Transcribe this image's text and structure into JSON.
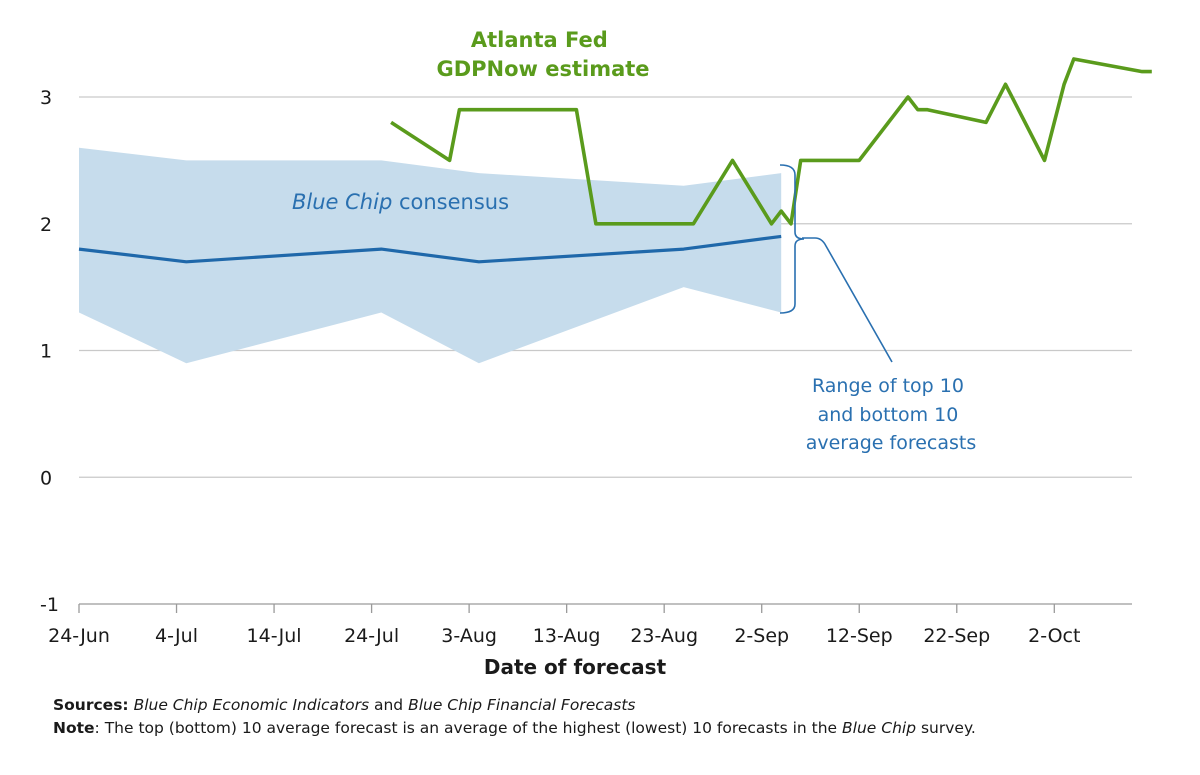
{
  "chart_data": {
    "type": "line",
    "title": "",
    "xlabel": "Date of forecast",
    "ylabel": "",
    "ylim": [
      -1,
      3.5
    ],
    "y_ticks": [
      "-1",
      "0",
      "1",
      "2",
      "3"
    ],
    "x_domain": [
      "2016-06-24",
      "2016-10-13"
    ],
    "x_ticks": [
      {
        "date": "2016-06-24",
        "label": "24-Jun"
      },
      {
        "date": "2016-07-04",
        "label": "4-Jul"
      },
      {
        "date": "2016-07-14",
        "label": "14-Jul"
      },
      {
        "date": "2016-07-24",
        "label": "24-Jul"
      },
      {
        "date": "2016-08-03",
        "label": "3-Aug"
      },
      {
        "date": "2016-08-13",
        "label": "13-Aug"
      },
      {
        "date": "2016-08-23",
        "label": "23-Aug"
      },
      {
        "date": "2016-09-02",
        "label": "2-Sep"
      },
      {
        "date": "2016-09-12",
        "label": "12-Sep"
      },
      {
        "date": "2016-09-22",
        "label": "22-Sep"
      },
      {
        "date": "2016-10-02",
        "label": "2-Oct"
      }
    ],
    "grid": true,
    "series": [
      {
        "id": "gdpnow",
        "name_lines": [
          "Atlanta Fed",
          "GDPNow estimate"
        ],
        "color": "#5a9b1c",
        "points": [
          {
            "x": "2016-07-26",
            "y": 2.8
          },
          {
            "x": "2016-08-01",
            "y": 2.5
          },
          {
            "x": "2016-08-02",
            "y": 2.9
          },
          {
            "x": "2016-08-14",
            "y": 2.9
          },
          {
            "x": "2016-08-16",
            "y": 2.0
          },
          {
            "x": "2016-08-26",
            "y": 2.0
          },
          {
            "x": "2016-08-30",
            "y": 2.5
          },
          {
            "x": "2016-09-03",
            "y": 2.0
          },
          {
            "x": "2016-09-04",
            "y": 2.1
          },
          {
            "x": "2016-09-05",
            "y": 2.0
          },
          {
            "x": "2016-09-06",
            "y": 2.5
          },
          {
            "x": "2016-09-12",
            "y": 2.5
          },
          {
            "x": "2016-09-17",
            "y": 3.0
          },
          {
            "x": "2016-09-18",
            "y": 2.9
          },
          {
            "x": "2016-09-19",
            "y": 2.9
          },
          {
            "x": "2016-09-25",
            "y": 2.8
          },
          {
            "x": "2016-09-27",
            "y": 3.1
          },
          {
            "x": "2016-10-01",
            "y": 2.5
          },
          {
            "x": "2016-10-03",
            "y": 3.1
          },
          {
            "x": "2016-10-04",
            "y": 3.3
          },
          {
            "x": "2016-10-11",
            "y": 3.2
          },
          {
            "x": "2016-10-12",
            "y": 3.2
          }
        ]
      },
      {
        "id": "bluechip",
        "name_italic": "Blue Chip",
        "name_rest": " consensus",
        "color": "#1f68aa",
        "points": [
          {
            "x": "2016-06-24",
            "y": 1.8
          },
          {
            "x": "2016-07-05",
            "y": 1.7
          },
          {
            "x": "2016-07-25",
            "y": 1.8
          },
          {
            "x": "2016-08-04",
            "y": 1.7
          },
          {
            "x": "2016-08-25",
            "y": 1.8
          },
          {
            "x": "2016-09-04",
            "y": 1.9
          }
        ]
      }
    ],
    "band": {
      "id": "range",
      "color": "#c6dcec",
      "label_lines": [
        "Range of top 10",
        "and bottom 10",
        "average forecasts"
      ],
      "label_color": "#2a70b0",
      "upper": [
        {
          "x": "2016-06-24",
          "y": 2.6
        },
        {
          "x": "2016-07-05",
          "y": 2.5
        },
        {
          "x": "2016-07-25",
          "y": 2.5
        },
        {
          "x": "2016-08-04",
          "y": 2.4
        },
        {
          "x": "2016-08-25",
          "y": 2.3
        },
        {
          "x": "2016-09-04",
          "y": 2.4
        }
      ],
      "lower": [
        {
          "x": "2016-06-24",
          "y": 1.3
        },
        {
          "x": "2016-07-05",
          "y": 0.9
        },
        {
          "x": "2016-07-25",
          "y": 1.3
        },
        {
          "x": "2016-08-04",
          "y": 0.9
        },
        {
          "x": "2016-08-25",
          "y": 1.5
        },
        {
          "x": "2016-09-04",
          "y": 1.3
        }
      ]
    }
  },
  "footer": {
    "sources_label": "Sources:",
    "sources_title1": "Blue Chip Economic Indicators",
    "sources_and": " and ",
    "sources_title2": "Blue Chip Financial Forecasts",
    "note_label": "Note",
    "note_text_1": ": The top (bottom) 10 average forecast is an average of the highest (lowest) 10 forecasts in the ",
    "note_italic": "Blue Chip",
    "note_text_2": " survey."
  }
}
